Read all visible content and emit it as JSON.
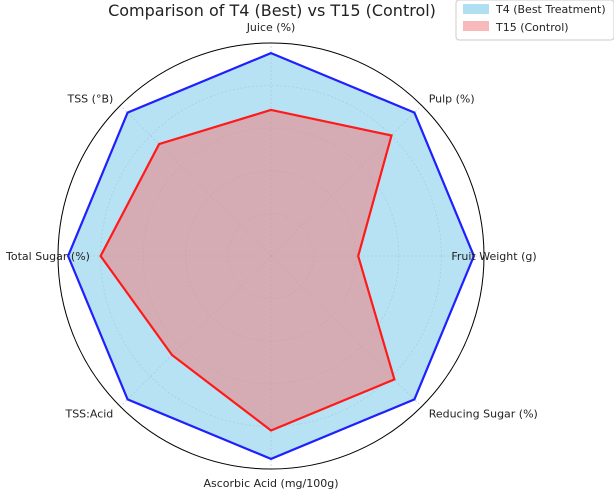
{
  "chart_data": {
    "type": "radar",
    "title": "Comparison of T4 (Best) vs T15 (Control)",
    "axes": [
      "Juice (%)",
      "Pulp (%)",
      "Fruit Weight (g)",
      "Reducing Sugar (%)",
      "Ascorbic Acid (mg/100g)",
      "TSS:Acid",
      "Total Sugar (%)",
      "TSS (°B)"
    ],
    "scale": "normalized to T4 (T4 = 1.0)",
    "rlim": [
      0,
      1.05
    ],
    "grid": true,
    "legend_position": "top-right",
    "series": [
      {
        "name": "T4 (Best Treatment)",
        "values": [
          1.0,
          1.0,
          1.0,
          1.0,
          1.0,
          1.0,
          1.0,
          1.0
        ],
        "line_color": "#1f1fff",
        "fill_color": "#87ceeb"
      },
      {
        "name": "T15 (Control)",
        "values": [
          0.72,
          0.84,
          0.43,
          0.86,
          0.86,
          0.69,
          0.84,
          0.78
        ],
        "line_color": "#ff1a1a",
        "fill_color": "#f08080"
      }
    ]
  }
}
